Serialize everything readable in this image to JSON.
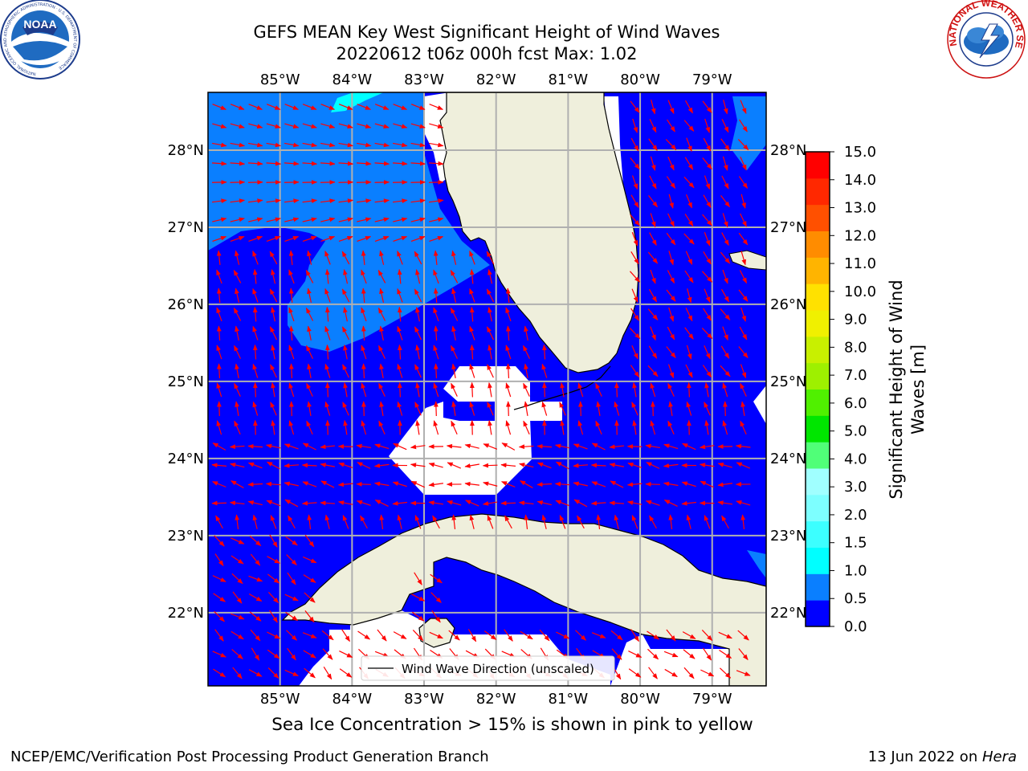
{
  "header": {
    "title_line1": "GEFS MEAN Key West Significant Height of Wind Waves",
    "title_line2": "20220612 t06z 000h fcst   Max: 1.02"
  },
  "logos": {
    "left": {
      "text": "NOAA",
      "ring_text": "NATIONAL OCEANIC AND ATMOSPHERIC ADMINISTRATION · U.S. DEPARTMENT OF COMMERCE"
    },
    "right": {
      "ring_text": "NATIONAL WEATHER SERVICE"
    }
  },
  "map": {
    "lon_labels": [
      "85°W",
      "84°W",
      "83°W",
      "82°W",
      "81°W",
      "80°W",
      "79°W"
    ],
    "lon_values": [
      -85,
      -84,
      -83,
      -82,
      -81,
      -80,
      -79
    ],
    "lat_labels": [
      "28°N",
      "27°N",
      "26°N",
      "25°N",
      "24°N",
      "23°N",
      "22°N"
    ],
    "lat_values": [
      28,
      27,
      26,
      25,
      24,
      23,
      22
    ],
    "extent": {
      "lon": [
        -86,
        -78.25
      ],
      "lat": [
        21.05,
        28.75
      ]
    },
    "legend_label": "Wind Wave Direction (unscaled)",
    "arrow_color": "#ff0000",
    "land_color": "#efefdc",
    "no_data_color": "#ffffff"
  },
  "colorbar": {
    "label_line1": "Significant Height of Wind",
    "label_line2": "Waves [m]",
    "ticks": [
      "0.0",
      "0.5",
      "1.0",
      "1.5",
      "2.0",
      "3.0",
      "4.0",
      "5.0",
      "6.0",
      "7.0",
      "8.0",
      "9.0",
      "10.0",
      "11.0",
      "12.0",
      "13.0",
      "14.0",
      "15.0"
    ],
    "colors": [
      "#0000ff",
      "#0a7fff",
      "#00ffff",
      "#3cffff",
      "#7dffff",
      "#a0ffff",
      "#50ff78",
      "#00e600",
      "#50f000",
      "#9ef000",
      "#c8f000",
      "#f0f000",
      "#ffe100",
      "#ffb400",
      "#ff8c00",
      "#ff5000",
      "#ff2800",
      "#ff0000"
    ]
  },
  "footer": {
    "note": "Sea Ice Concentration > 15% is shown in pink to yellow",
    "left": "NCEP/EMC/Verification Post Processing Product Generation Branch",
    "right_date": "13 Jun 2022 on ",
    "right_host": "Hera"
  }
}
